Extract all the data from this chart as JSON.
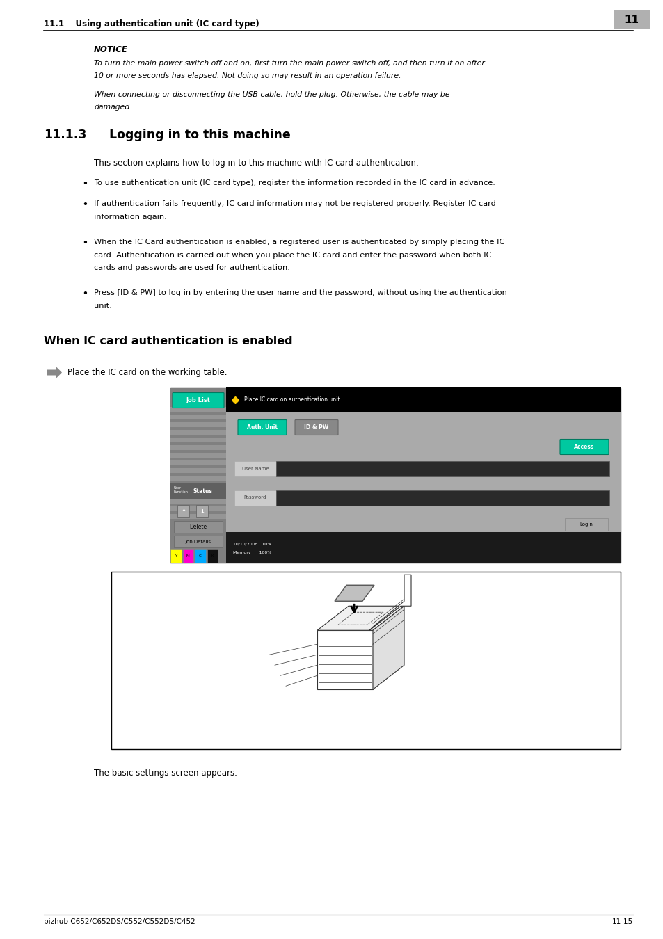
{
  "page_width": 9.54,
  "page_height": 13.5,
  "bg_color": "#ffffff",
  "header_text": "11.1    Using authentication unit (IC card type)",
  "header_number": "11",
  "section_number": "11.1.3",
  "section_title": "Logging in to this machine",
  "section_intro": "This section explains how to log in to this machine with IC card authentication.",
  "bullets": [
    "To use authentication unit (IC card type), register the information recorded in the IC card in advance.",
    "If authentication fails frequently, IC card information may not be registered properly. Register IC card\ninformation again.",
    "When the IC Card authentication is enabled, a registered user is authenticated by simply placing the IC\ncard. Authentication is carried out when you place the IC card and enter the password when both IC\ncards and passwords are used for authentication.",
    "Press [ID & PW] to log in by entering the user name and the password, without using the authentication\nunit."
  ],
  "subsection_title": "When IC card authentication is enabled",
  "arrow_step": "Place the IC card on the working table.",
  "footer_left": "bizhub C652/C652DS/C552/C552DS/C452",
  "footer_right": "11-15",
  "notice_title": "NOTICE",
  "notice_lines": [
    "To turn the main power switch off and on, first turn the main power switch off, and then turn it on after",
    "10 or more seconds has elapsed. Not doing so may result in an operation failure.",
    "",
    "When connecting or disconnecting the USB cable, hold the plug. Otherwise, the cable may be",
    "damaged."
  ]
}
